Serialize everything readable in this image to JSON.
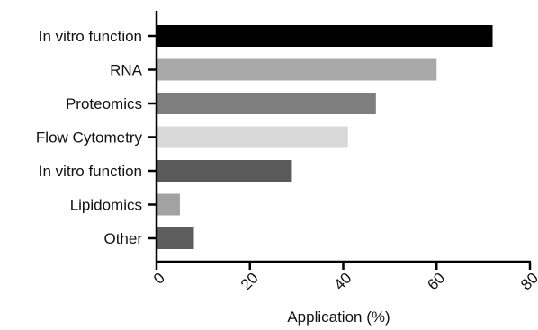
{
  "chart_data": {
    "type": "bar",
    "orientation": "horizontal",
    "title": "",
    "xlabel": "Application (%)",
    "ylabel": "",
    "xlim": [
      0,
      80
    ],
    "x_ticks": [
      "0",
      "20",
      "40",
      "60",
      "80"
    ],
    "tick_label_rotation": "diagonal",
    "grid": false,
    "categories": [
      "In vitro function",
      "RNA",
      "Proteomics",
      "Flow Cytometry",
      "In vitro function",
      "Lipidomics",
      "Other"
    ],
    "values": [
      72,
      60,
      47,
      41,
      29,
      5,
      8
    ],
    "bar_colors": [
      "#000000",
      "#a8a8a8",
      "#7e7e7e",
      "#d8d8d8",
      "#5a5a5a",
      "#a2a2a2",
      "#5e5e5e"
    ]
  }
}
